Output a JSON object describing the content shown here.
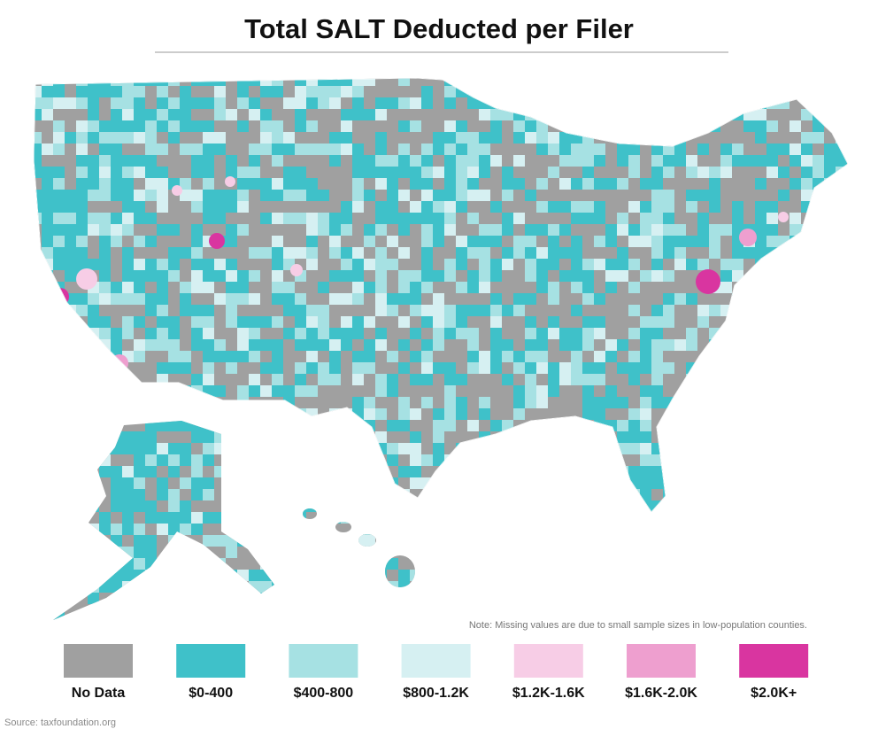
{
  "title": "Total SALT Deducted per Filer",
  "legend": [
    {
      "label": "No Data",
      "color": "#a0a0a0"
    },
    {
      "label": "$0-400",
      "color": "#3fc1c9"
    },
    {
      "label": "$400-800",
      "color": "#a6e1e3"
    },
    {
      "label": "$800-1.2K",
      "color": "#d6f0f2"
    },
    {
      "label": "$1.2K-1.6K",
      "color": "#f7cde6"
    },
    {
      "label": "$1.6K-2.0K",
      "color": "#ee9fcf"
    },
    {
      "label": "$2.0K+",
      "color": "#d935a0"
    }
  ],
  "note": "Note: Missing values are due to small sample sizes in low-population counties.",
  "source": "Source: taxfoundation.org"
}
